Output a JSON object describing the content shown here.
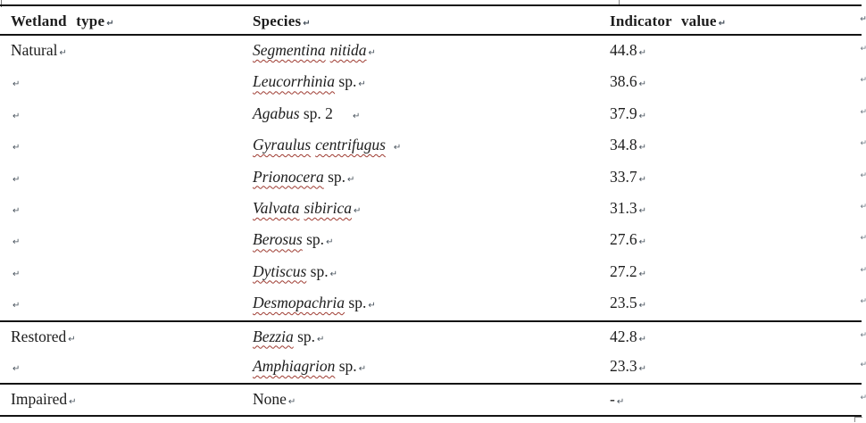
{
  "document": {
    "background": "#ffffff",
    "text_color": "#1d1d1d",
    "border_color": "#141414",
    "squiggle_color": "#9e3b31",
    "mark_color": "#47525c"
  },
  "marks": {
    "cell_mark": "↵",
    "row_mark": "↵"
  },
  "table": {
    "headers": {
      "wetland_type": "Wetland type",
      "species": "Species",
      "indicator_value": "Indicator value"
    },
    "rows": [
      {
        "wetland": "Natural",
        "genus": "Segmentina",
        "epithet": "nitida",
        "suffix": "",
        "value": "44.8"
      },
      {
        "wetland": "",
        "genus": "Leucorrhinia",
        "epithet": "",
        "suffix": " sp.",
        "value": "38.6"
      },
      {
        "wetland": "",
        "genus": "Agabus",
        "epithet": "",
        "suffix": " sp. 2",
        "value": "37.9"
      },
      {
        "wetland": "",
        "genus": "Gyraulus",
        "epithet": "centrifugus",
        "suffix": "",
        "value": "34.8"
      },
      {
        "wetland": "",
        "genus": "Prionocera",
        "epithet": "",
        "suffix": " sp.",
        "value": "33.7"
      },
      {
        "wetland": "",
        "genus": "Valvata",
        "epithet": "sibirica",
        "suffix": "",
        "value": "31.3"
      },
      {
        "wetland": "",
        "genus": "Berosus",
        "epithet": "",
        "suffix": " sp.",
        "value": "27.6"
      },
      {
        "wetland": "",
        "genus": "Dytiscus",
        "epithet": "",
        "suffix": " sp.",
        "value": "27.2"
      },
      {
        "wetland": "",
        "genus": "Desmopachria",
        "epithet": "",
        "suffix": " sp.",
        "value": "23.5"
      },
      {
        "wetland": "Restored",
        "genus": "Bezzia",
        "epithet": "",
        "suffix": " sp.",
        "value": "42.8"
      },
      {
        "wetland": "",
        "genus": "Amphiagrion",
        "epithet": "",
        "suffix": " sp.",
        "value": "23.3"
      },
      {
        "wetland": "Impaired",
        "species_plain": "None",
        "value": "-"
      }
    ]
  }
}
